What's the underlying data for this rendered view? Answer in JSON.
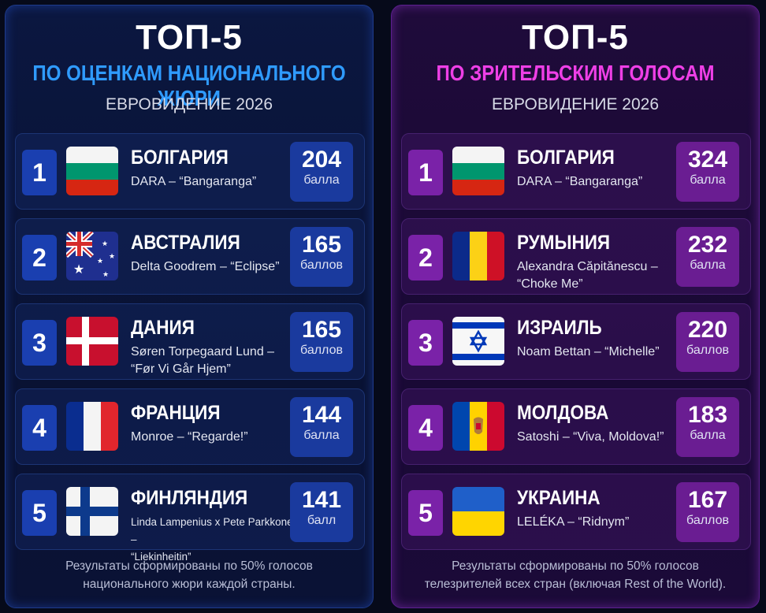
{
  "colors": {
    "jury_accent": "#2f9bff",
    "tele_accent": "#ee3fe6",
    "jury_box": "#1a3fb0",
    "tele_box": "#7a22a8"
  },
  "jury": {
    "title": "ТОП-5",
    "subtitle": "ПО ОЦЕНКАМ НАЦИОНАЛЬНОГО ЖЮРИ",
    "event": "ЕВРОВИДЕНИЕ 2026",
    "footer_line1": "Результаты сформированы по 50% голосов",
    "footer_line2": "национального жюри каждой страны.",
    "entries": [
      {
        "rank": "1",
        "country": "БОЛГАРИЯ",
        "song_line1": "DARA – “Bangaranga”",
        "song_line2": "",
        "points": "204",
        "unit": "балла",
        "flag_icon": "bulgaria-flag-icon"
      },
      {
        "rank": "2",
        "country": "АВСТРАЛИЯ",
        "song_line1": "Delta Goodrem – “Eclipse”",
        "song_line2": "",
        "points": "165",
        "unit": "баллов",
        "flag_icon": "australia-flag-icon"
      },
      {
        "rank": "3",
        "country": "ДАНИЯ",
        "song_line1": "Søren Torpegaard Lund –",
        "song_line2": "“Før Vi Går Hjem”",
        "points": "165",
        "unit": "баллов",
        "flag_icon": "denmark-flag-icon"
      },
      {
        "rank": "4",
        "country": "ФРАНЦИЯ",
        "song_line1": "Monroe – “Regarde!”",
        "song_line2": "",
        "points": "144",
        "unit": "балла",
        "flag_icon": "france-flag-icon"
      },
      {
        "rank": "5",
        "country": "ФИНЛЯНДИЯ",
        "song_line1": "Linda Lampenius x Pete Parkkonen –",
        "song_line2": "“Liekinheitin”",
        "points": "141",
        "unit": "балл",
        "flag_icon": "finland-flag-icon"
      }
    ]
  },
  "tele": {
    "title": "ТОП-5",
    "subtitle": "ПО ЗРИТЕЛЬСКИМ ГОЛОСАМ",
    "event": "ЕВРОВИДЕНИЕ 2026",
    "footer_line1": "Результаты сформированы по 50% голосов",
    "footer_line2": "телезрителей всех стран (включая Rest of the World).",
    "entries": [
      {
        "rank": "1",
        "country": "БОЛГАРИЯ",
        "song_line1": "DARA – “Bangaranga”",
        "song_line2": "",
        "points": "324",
        "unit": "балла",
        "flag_icon": "bulgaria-flag-icon"
      },
      {
        "rank": "2",
        "country": "РУМЫНИЯ",
        "song_line1": "Alexandra Căpitănescu –",
        "song_line2": "“Choke Me”",
        "points": "232",
        "unit": "балла",
        "flag_icon": "romania-flag-icon"
      },
      {
        "rank": "3",
        "country": "ИЗРАИЛЬ",
        "song_line1": "Noam Bettan – “Michelle”",
        "song_line2": "",
        "points": "220",
        "unit": "баллов",
        "flag_icon": "israel-flag-icon"
      },
      {
        "rank": "4",
        "country": "МОЛДОВА",
        "song_line1": "Satoshi – “Viva, Moldova!”",
        "song_line2": "",
        "points": "183",
        "unit": "балла",
        "flag_icon": "moldova-flag-icon"
      },
      {
        "rank": "5",
        "country": "УКРАИНА",
        "song_line1": "LELÉKA – “Ridnym”",
        "song_line2": "",
        "points": "167",
        "unit": "баллов",
        "flag_icon": "ukraine-flag-icon"
      }
    ]
  }
}
